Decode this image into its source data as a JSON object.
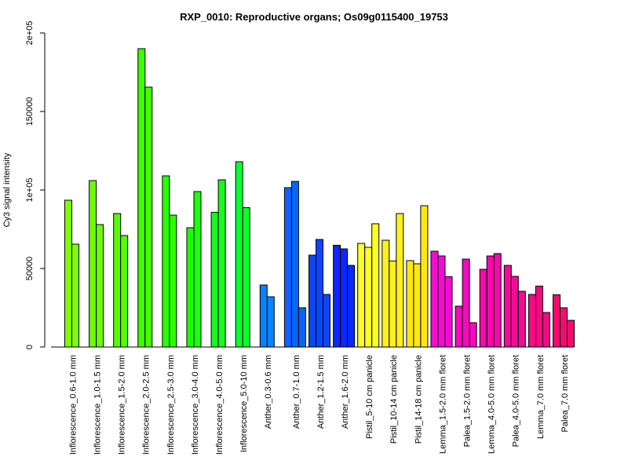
{
  "chart_data": {
    "type": "bar",
    "title": "RXP_0010: Reproductive organs; Os09g0115400_19753",
    "xlabel": "",
    "ylabel": "Cy3 signal intensity",
    "ylim": [
      0,
      200000
    ],
    "yticks": [
      0,
      50000,
      100000,
      150000,
      200000
    ],
    "ytick_labels": [
      "0",
      "50000",
      "1e+05",
      "150000",
      "2e+05"
    ],
    "grid": false,
    "legend": "none",
    "categories": [
      "Inflorescence_0.6-1.0 mm",
      "Inflorescence_1.0-1.5 mm",
      "Inflorescence_1.5-2.0 mm",
      "Inflorescence_2.0-2.5 mm",
      "Inflorescence_2.5-3.0 mm",
      "Inflorescence_3.0-4.0 mm",
      "Inflorescence_4.0-5.0 mm",
      "Inflorescence_5.0-10 mm",
      "Anther_0.3-0.6 mm",
      "Anther_0.7-1.0 mm",
      "Anther_1.2-1.5 mm",
      "Anther_1.6-2.0 mm",
      "Pistil_5-10 cm panicle",
      "Pistil_10-14 cm panicle",
      "Pistil_14-18 cm panicle",
      "Lemma_1.5-2.0 mm floret",
      "Palea_1.5-2.0 mm floret",
      "Lemma_4.0-5.0 mm floret",
      "Palea_4.0-5.0 mm floret",
      "Lemma_7.0 mm floret",
      "Palea_7.0 mm floret"
    ],
    "groups": [
      {
        "color": "#7fff00",
        "values": [
          93500,
          65500
        ]
      },
      {
        "color": "#6cff00",
        "values": [
          106000,
          78000
        ]
      },
      {
        "color": "#55ff00",
        "values": [
          85000,
          71000
        ]
      },
      {
        "color": "#3fff00",
        "values": [
          190000,
          165500
        ]
      },
      {
        "color": "#2bff00",
        "values": [
          109000,
          84000
        ]
      },
      {
        "color": "#1fff0a",
        "values": [
          76000,
          99000
        ]
      },
      {
        "color": "#14ff1e",
        "values": [
          85800,
          106500
        ]
      },
      {
        "color": "#0aff32",
        "values": [
          118000,
          88800
        ]
      },
      {
        "color": "#0a82ff",
        "values": [
          39500,
          32000
        ]
      },
      {
        "color": "#0a64ff",
        "values": [
          101500,
          105500,
          25000
        ]
      },
      {
        "color": "#0a46ff",
        "values": [
          58500,
          68500,
          33500
        ]
      },
      {
        "color": "#0a28ff",
        "values": [
          64800,
          62500,
          52000
        ]
      },
      {
        "color": "#ffff28",
        "values": [
          66000,
          63500,
          78500
        ]
      },
      {
        "color": "#fff01e",
        "values": [
          68000,
          54800,
          85000
        ]
      },
      {
        "color": "#ffe614",
        "values": [
          55000,
          53000,
          90000
        ]
      },
      {
        "color": "#f50ad2",
        "values": [
          61000,
          58000,
          44800
        ]
      },
      {
        "color": "#f50abe",
        "values": [
          26000,
          56000,
          15500
        ]
      },
      {
        "color": "#f50aaa",
        "values": [
          49500,
          58000,
          59500
        ]
      },
      {
        "color": "#f50a96",
        "values": [
          52000,
          45000,
          35500
        ]
      },
      {
        "color": "#f50a82",
        "values": [
          33500,
          38800,
          22000
        ]
      },
      {
        "color": "#f50a6e",
        "values": [
          33300,
          25000,
          17000
        ]
      }
    ]
  }
}
